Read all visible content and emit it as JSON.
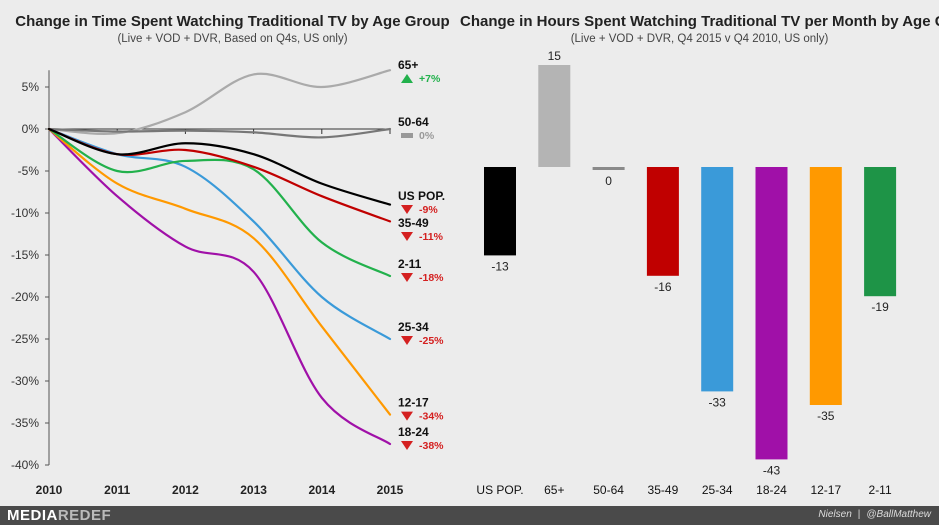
{
  "chart_data": [
    {
      "type": "line",
      "title": "Change in Time Spent Watching Traditional TV by Age Group",
      "subtitle": "(Live + VOD + DVR, Based on Q4s, US only)",
      "x": [
        2010,
        2011,
        2012,
        2013,
        2014,
        2015
      ],
      "x_tick_labels": [
        "2010",
        "2011",
        "2012",
        "2013",
        "2014",
        "2015"
      ],
      "ylim": [
        -40,
        7
      ],
      "y_ticks": [
        5,
        0,
        -5,
        -10,
        -15,
        -20,
        -25,
        -30,
        -35,
        -40
      ],
      "y_tick_labels": [
        "5%",
        "0%",
        "-5%",
        "-10%",
        "-15%",
        "-20%",
        "-25%",
        "-30%",
        "-35%",
        "-40%"
      ],
      "series": [
        {
          "name": "65+",
          "change": "+7%",
          "direction": "up",
          "color": "#aaaaaa",
          "values": [
            0,
            -0.5,
            2,
            6.5,
            5,
            7
          ]
        },
        {
          "name": "50-64",
          "change": "0%",
          "direction": "flat",
          "color": "#777777",
          "values": [
            0,
            -0.3,
            -0.2,
            -0.4,
            -1,
            0
          ]
        },
        {
          "name": "US POP.",
          "change": "-9%",
          "direction": "down",
          "color": "#000000",
          "values": [
            0,
            -3,
            -1.7,
            -3,
            -6.5,
            -9
          ]
        },
        {
          "name": "35-49",
          "change": "-11%",
          "direction": "down",
          "color": "#c00000",
          "values": [
            0,
            -3,
            -2.5,
            -4.5,
            -8,
            -11
          ]
        },
        {
          "name": "2-11",
          "change": "-18%",
          "direction": "down",
          "color": "#22b14c",
          "values": [
            0,
            -5,
            -3.8,
            -4.8,
            -13.5,
            -17.5
          ]
        },
        {
          "name": "25-34",
          "change": "-25%",
          "direction": "down",
          "color": "#3a9ad9",
          "values": [
            0,
            -3,
            -4.5,
            -11,
            -20,
            -25
          ]
        },
        {
          "name": "12-17",
          "change": "-34%",
          "direction": "down",
          "color": "#ff9900",
          "values": [
            0,
            -6.5,
            -9.5,
            -13,
            -23.5,
            -34
          ]
        },
        {
          "name": "18-24",
          "change": "-38%",
          "direction": "down",
          "color": "#a010a8",
          "values": [
            0,
            -8,
            -14,
            -17,
            -32,
            -37.5
          ]
        }
      ]
    },
    {
      "type": "bar",
      "title": "Change in Hours Spent Watching Traditional TV per Month by Age Group",
      "subtitle": "(Live + VOD + DVR, Q4 2015 v Q4 2010, US only)",
      "categories": [
        "US POP.",
        "65+",
        "50-64",
        "35-49",
        "25-34",
        "18-24",
        "12-17",
        "2-11"
      ],
      "values": [
        -13,
        15,
        0,
        -16,
        -33,
        -43,
        -35,
        -19
      ],
      "value_labels": [
        "-13",
        "15",
        "0",
        "-16",
        "-33",
        "-43",
        "-35",
        "-19"
      ],
      "colors": [
        "#000000",
        "#b4b4b4",
        "#8a8a8a",
        "#c00000",
        "#3a9ad9",
        "#a010a8",
        "#ff9900",
        "#1e9447"
      ],
      "ylim": [
        -45,
        16
      ]
    }
  ],
  "footer": {
    "brand_part1": "MEDIA",
    "brand_part2": "REDEF",
    "source": "Nielsen",
    "separator": "|",
    "handle": "@BallMatthew"
  },
  "colors": {
    "background": "#ececec",
    "up": "#22b14c",
    "down": "#d42020",
    "flat": "#999999"
  }
}
